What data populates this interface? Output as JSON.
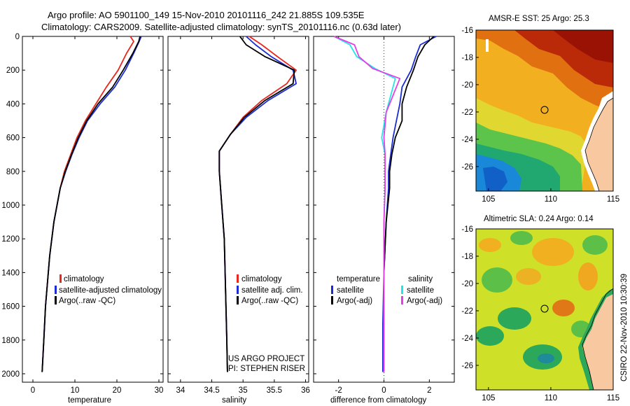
{
  "header": {
    "line1": "Argo profile: AO 5901100_149 15-Nov-2010 20101116_242 21.885S 109.535E",
    "line2": "Climatology: CARS2009. Satellite-adjusted climatology: synTS_20101116.nc (0.63d later)"
  },
  "colors": {
    "climatology": "#e8281e",
    "satellite": "#1b2bd6",
    "argo": "#000000",
    "sal_satellite": "#22e5e8",
    "sal_argo": "#e43ee6"
  },
  "chart_data": [
    {
      "type": "line",
      "xlabel": "temperature",
      "xticks": [
        0,
        10,
        20,
        30
      ],
      "yticks": [
        0,
        200,
        400,
        600,
        800,
        1000,
        1200,
        1400,
        1600,
        1800,
        2000
      ],
      "xlim": [
        -2.5,
        31
      ],
      "ylim": [
        0,
        2050
      ],
      "y_reversed": true,
      "legend": {
        "placement": "lower-center",
        "entries": [
          "climatology",
          "satellite-adjusted climatology",
          "Argo(..raw -QC)"
        ]
      },
      "series": [
        {
          "name": "climatology",
          "color": "climatology",
          "x": [
            23.2,
            24,
            22.3,
            20.3,
            17.5,
            15,
            12.5,
            10.5,
            9,
            7.5,
            6.5,
            5,
            4,
            3,
            2.6,
            2.2
          ],
          "y": [
            0,
            30,
            100,
            200,
            300,
            400,
            500,
            600,
            700,
            800,
            900,
            1100,
            1300,
            1600,
            1800,
            1990
          ]
        },
        {
          "name": "satellite-adjusted climatology",
          "color": "satellite",
          "x": [
            25.8,
            25.3,
            24,
            22,
            19.5,
            16,
            13,
            11,
            9.3,
            7.8,
            6.5,
            5,
            4,
            3,
            2.6,
            2.2
          ],
          "y": [
            0,
            30,
            100,
            200,
            300,
            400,
            500,
            600,
            700,
            800,
            900,
            1100,
            1300,
            1600,
            1800,
            1990
          ]
        },
        {
          "name": "Argo(..raw -QC)",
          "color": "argo",
          "x": [
            25.5,
            25.2,
            23.8,
            21.5,
            19,
            15.5,
            12.8,
            10.8,
            9.2,
            7.7,
            6.5,
            5,
            4,
            3,
            2.6,
            2.2
          ],
          "y": [
            0,
            30,
            100,
            200,
            300,
            400,
            500,
            600,
            700,
            800,
            900,
            1100,
            1300,
            1600,
            1800,
            1990
          ]
        }
      ]
    },
    {
      "type": "line",
      "xlabel": "salinity",
      "xticks": [
        34,
        34.5,
        35,
        35.5,
        36
      ],
      "xlim": [
        33.8,
        36.05
      ],
      "ylim": [
        0,
        2050
      ],
      "y_reversed": true,
      "legend": {
        "placement": "lower-center",
        "entries": [
          "climatology",
          "satellite adj. clim.",
          "Argo(..raw -QC)"
        ]
      },
      "annotation": [
        "US ARGO PROJECT",
        "PI: STEPHEN RISER"
      ],
      "series": [
        {
          "name": "climatology",
          "color": "climatology",
          "x": [
            35.1,
            35.3,
            35.55,
            35.85,
            35.7,
            35.3,
            35,
            34.8,
            34.62,
            34.62,
            34.66,
            34.7,
            34.72,
            34.74,
            34.75
          ],
          "y": [
            0,
            50,
            120,
            200,
            280,
            380,
            480,
            580,
            680,
            800,
            1000,
            1200,
            1500,
            1800,
            1990
          ]
        },
        {
          "name": "satellite adj. clim.",
          "color": "satellite",
          "x": [
            35.05,
            35.2,
            35.45,
            35.8,
            35.85,
            35.4,
            35.05,
            34.8,
            34.62,
            34.62,
            34.66,
            34.7,
            34.72,
            34.74,
            34.75
          ],
          "y": [
            0,
            50,
            120,
            200,
            280,
            380,
            480,
            580,
            680,
            800,
            1000,
            1200,
            1500,
            1800,
            1990
          ]
        },
        {
          "name": "Argo(..raw -QC)",
          "color": "argo",
          "x": [
            34.95,
            35.05,
            35.35,
            35.82,
            35.8,
            35.35,
            35.02,
            34.8,
            34.62,
            34.62,
            34.66,
            34.7,
            34.72,
            34.74,
            34.75
          ],
          "y": [
            0,
            50,
            120,
            200,
            280,
            380,
            480,
            580,
            680,
            800,
            1000,
            1200,
            1500,
            1800,
            1990
          ]
        }
      ]
    },
    {
      "type": "line",
      "xlabel": "difference from climatology",
      "xticks": [
        -2,
        0,
        2
      ],
      "xlim": [
        -3.1,
        3.1
      ],
      "ylim": [
        0,
        2050
      ],
      "y_reversed": true,
      "zero_line": true,
      "legend": {
        "placement": "lower-center",
        "headings": [
          "temperature",
          "salinity"
        ],
        "entries": [
          "satellite",
          "Argo(-adj)",
          "satellite",
          "Argo(-adj)"
        ]
      },
      "series": [
        {
          "name": "satellite",
          "group": "temperature",
          "color": "satellite",
          "x": [
            2.3,
            1.6,
            1.4,
            1.2,
            0.8,
            0.7,
            0.55,
            0.4,
            0.3,
            0.2,
            0.2,
            0.1,
            0,
            -0.05,
            -0.05
          ],
          "y": [
            0,
            50,
            120,
            200,
            300,
            400,
            500,
            600,
            700,
            800,
            900,
            1100,
            1400,
            1700,
            1990
          ]
        },
        {
          "name": "Argo(-adj)",
          "group": "temperature",
          "color": "argo",
          "x": [
            2.2,
            1.8,
            1.5,
            1.3,
            1,
            0.8,
            0.8,
            0.5,
            0.35,
            0.25,
            0.25,
            0.1,
            0,
            0,
            0
          ],
          "y": [
            0,
            50,
            120,
            200,
            300,
            400,
            500,
            600,
            700,
            800,
            900,
            1100,
            1400,
            1700,
            1990
          ]
        },
        {
          "name": "satellite",
          "group": "salinity",
          "color": "sal_satellite",
          "x": [
            -2.2,
            -1.5,
            -1.2,
            -0.4,
            0.5,
            0.3,
            0.1,
            -0.1,
            0.05,
            0.05,
            0.05,
            0,
            0,
            0,
            0
          ],
          "y": [
            0,
            50,
            120,
            190,
            250,
            350,
            450,
            600,
            700,
            800,
            900,
            1100,
            1400,
            1700,
            1990
          ]
        },
        {
          "name": "Argo(-adj)",
          "group": "salinity",
          "color": "sal_argo",
          "x": [
            -2.2,
            -1.3,
            -1.1,
            -0.5,
            0.7,
            0.4,
            0.1,
            0,
            0.05,
            0.05,
            0.05,
            0,
            0,
            0,
            0
          ],
          "y": [
            0,
            50,
            120,
            190,
            250,
            350,
            450,
            600,
            700,
            800,
            900,
            1100,
            1400,
            1700,
            1990
          ]
        }
      ]
    },
    {
      "type": "heatmap",
      "title": "AMSR-E SST: 25 Argo: 25.3",
      "xticks": [
        105,
        110,
        115
      ],
      "yticks": [
        -16,
        -18,
        -20,
        -22,
        -24,
        -26
      ],
      "xlim": [
        104,
        115
      ],
      "ylim": [
        -27.8,
        -16
      ],
      "marker": {
        "lon": 109.535,
        "lat": -21.885
      }
    },
    {
      "type": "heatmap",
      "title": "Altimetric SLA: 0.24 Argo: 0.14",
      "xticks": [
        105,
        110,
        115
      ],
      "yticks": [
        -16,
        -18,
        -20,
        -22,
        -24,
        -26
      ],
      "xlim": [
        104,
        115
      ],
      "ylim": [
        -27.8,
        -16
      ],
      "marker": {
        "lon": 109.535,
        "lat": -21.885
      }
    }
  ],
  "side_label": "CSIRO 22-Nov-2010 10:30:39"
}
